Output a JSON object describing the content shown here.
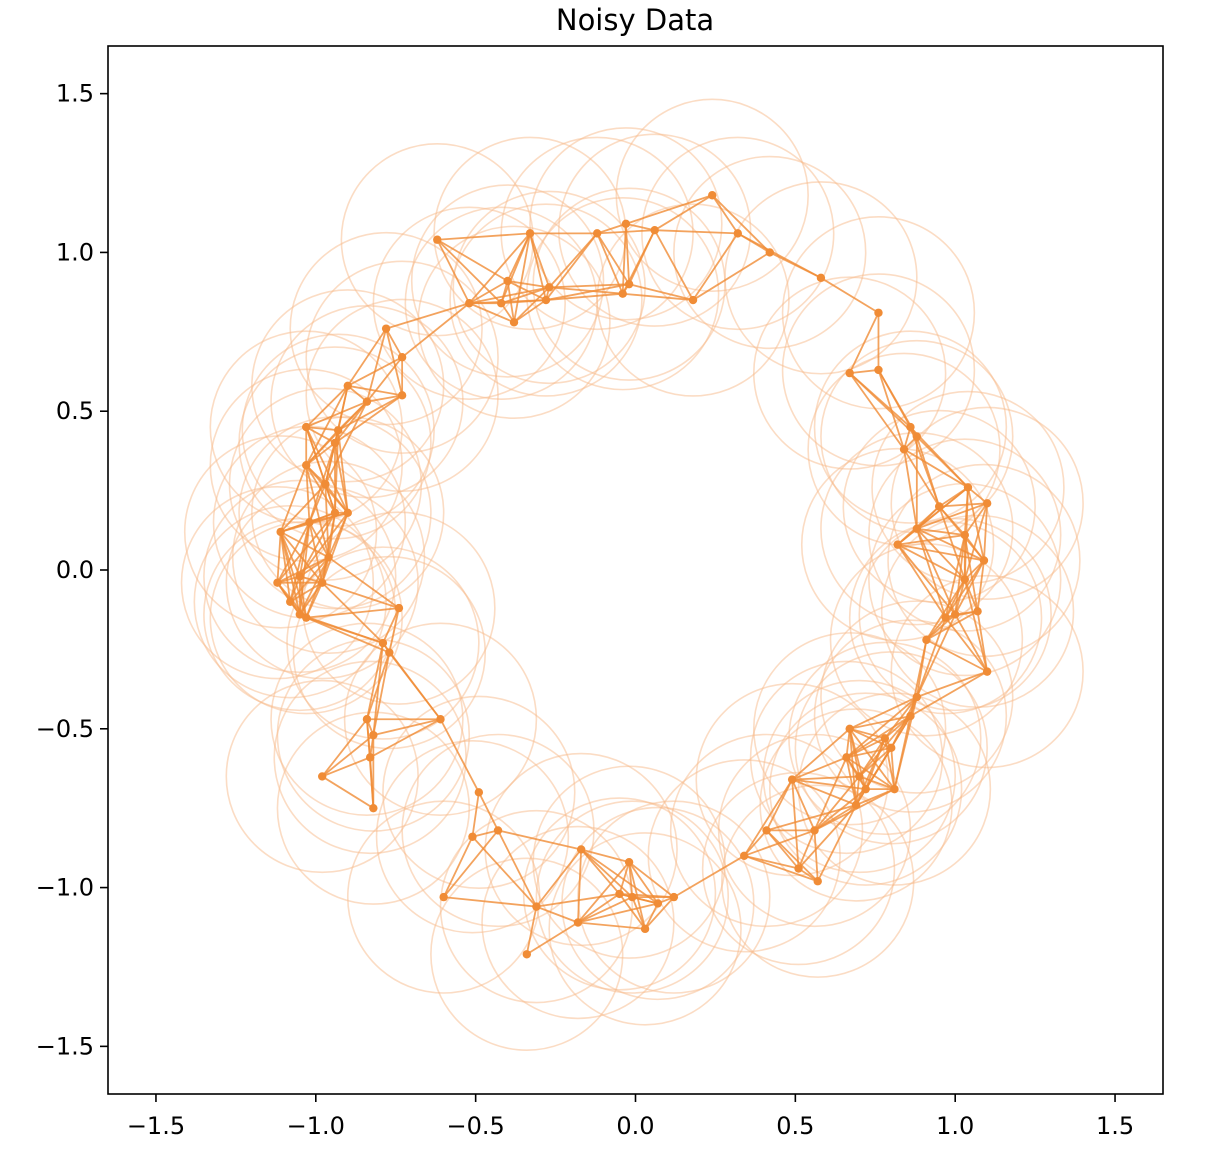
{
  "chart_data": {
    "type": "scatter",
    "title": "Noisy Data",
    "xlabel": "",
    "ylabel": "",
    "xlim": [
      -1.65,
      1.65
    ],
    "ylim": [
      -1.65,
      1.65
    ],
    "grid": false,
    "legend": "none",
    "x_ticks": [
      "−1.5",
      "−1.0",
      "−0.5",
      "0.0",
      "0.5",
      "1.0",
      "1.5"
    ],
    "y_ticks": [
      "1.5",
      "1.0",
      "0.5",
      "0.0",
      "−0.5",
      "−1.0",
      "−1.5"
    ],
    "x_tick_values": [
      -1.5,
      -1.0,
      -0.5,
      0.0,
      0.5,
      1.0,
      1.5
    ],
    "y_tick_values": [
      1.5,
      1.0,
      0.5,
      0.0,
      -0.5,
      -1.0,
      -1.5
    ],
    "ball_radius": 0.3,
    "neighbor_radius": 0.3,
    "colors": {
      "point": "#f08c36",
      "edge": "#f08c36",
      "ball": "#f7b98a"
    },
    "points": [
      [
        0.24,
        1.18
      ],
      [
        0.32,
        1.06
      ],
      [
        0.42,
        1.0
      ],
      [
        0.58,
        0.92
      ],
      [
        0.76,
        0.81
      ],
      [
        0.06,
        1.07
      ],
      [
        -0.03,
        1.09
      ],
      [
        -0.12,
        1.06
      ],
      [
        -0.33,
        1.06
      ],
      [
        -0.62,
        1.04
      ],
      [
        -0.02,
        0.9
      ],
      [
        -0.04,
        0.87
      ],
      [
        0.18,
        0.85
      ],
      [
        -0.27,
        0.89
      ],
      [
        -0.28,
        0.85
      ],
      [
        -0.4,
        0.91
      ],
      [
        -0.42,
        0.84
      ],
      [
        -0.38,
        0.78
      ],
      [
        -0.52,
        0.84
      ],
      [
        -0.78,
        0.76
      ],
      [
        -0.73,
        0.67
      ],
      [
        -0.73,
        0.55
      ],
      [
        -0.84,
        0.53
      ],
      [
        -0.9,
        0.58
      ],
      [
        -0.93,
        0.44
      ],
      [
        -0.94,
        0.4
      ],
      [
        -1.03,
        0.45
      ],
      [
        -1.03,
        0.33
      ],
      [
        -0.97,
        0.27
      ],
      [
        -0.94,
        0.18
      ],
      [
        -0.9,
        0.18
      ],
      [
        -1.02,
        0.15
      ],
      [
        -1.11,
        0.12
      ],
      [
        -0.96,
        0.04
      ],
      [
        -1.05,
        -0.02
      ],
      [
        -1.12,
        -0.04
      ],
      [
        -0.98,
        -0.04
      ],
      [
        -1.08,
        -0.1
      ],
      [
        -1.05,
        -0.14
      ],
      [
        -1.03,
        -0.15
      ],
      [
        -0.74,
        -0.12
      ],
      [
        -0.79,
        -0.23
      ],
      [
        -0.77,
        -0.26
      ],
      [
        -0.84,
        -0.47
      ],
      [
        -0.61,
        -0.47
      ],
      [
        -0.82,
        -0.52
      ],
      [
        -0.83,
        -0.59
      ],
      [
        -0.98,
        -0.65
      ],
      [
        -0.82,
        -0.75
      ],
      [
        -0.49,
        -0.7
      ],
      [
        -0.43,
        -0.82
      ],
      [
        -0.51,
        -0.84
      ],
      [
        -0.6,
        -1.03
      ],
      [
        -0.31,
        -1.06
      ],
      [
        -0.34,
        -1.21
      ],
      [
        -0.18,
        -1.11
      ],
      [
        -0.17,
        -0.88
      ],
      [
        -0.02,
        -0.92
      ],
      [
        -0.05,
        -1.02
      ],
      [
        -0.01,
        -1.03
      ],
      [
        0.03,
        -1.13
      ],
      [
        0.07,
        -1.05
      ],
      [
        0.12,
        -1.03
      ],
      [
        0.34,
        -0.9
      ],
      [
        0.41,
        -0.82
      ],
      [
        0.51,
        -0.94
      ],
      [
        0.56,
        -0.82
      ],
      [
        0.57,
        -0.98
      ],
      [
        0.49,
        -0.66
      ],
      [
        0.66,
        -0.59
      ],
      [
        0.67,
        -0.5
      ],
      [
        0.7,
        -0.65
      ],
      [
        0.69,
        -0.74
      ],
      [
        0.72,
        -0.69
      ],
      [
        0.78,
        -0.53
      ],
      [
        0.8,
        -0.56
      ],
      [
        0.81,
        -0.69
      ],
      [
        0.86,
        -0.46
      ],
      [
        0.88,
        -0.4
      ],
      [
        0.91,
        -0.22
      ],
      [
        0.97,
        -0.15
      ],
      [
        1.0,
        -0.14
      ],
      [
        1.1,
        -0.32
      ],
      [
        1.07,
        -0.13
      ],
      [
        1.03,
        -0.03
      ],
      [
        1.09,
        0.03
      ],
      [
        1.03,
        0.11
      ],
      [
        1.04,
        0.26
      ],
      [
        1.1,
        0.21
      ],
      [
        0.95,
        0.2
      ],
      [
        0.88,
        0.13
      ],
      [
        0.82,
        0.08
      ],
      [
        0.84,
        0.38
      ],
      [
        0.86,
        0.45
      ],
      [
        0.88,
        0.42
      ],
      [
        0.76,
        0.63
      ],
      [
        0.67,
        0.62
      ]
    ]
  }
}
